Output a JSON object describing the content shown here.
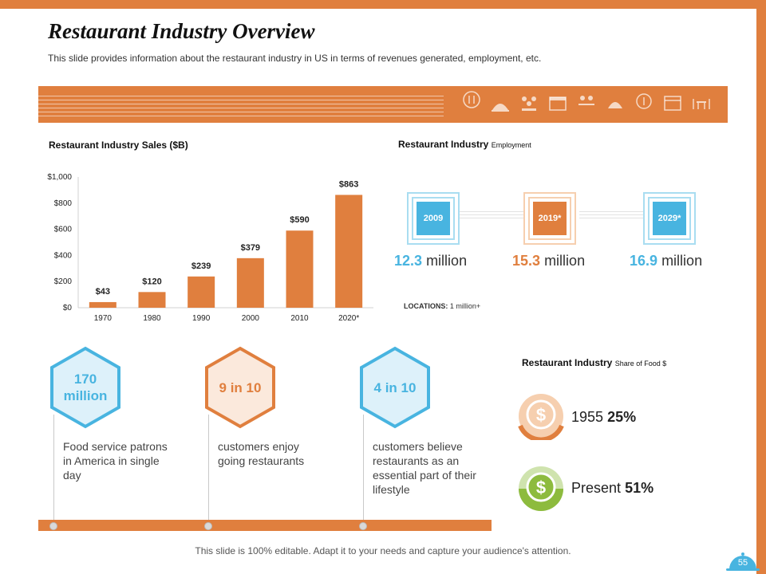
{
  "header": {
    "title": "Restaurant Industry Overview",
    "subtitle": "This slide provides information about the restaurant industry in US in terms of revenues generated, employment, etc."
  },
  "sales": {
    "title": "Restaurant Industry Sales ($B)"
  },
  "chart_data": {
    "type": "bar",
    "title": "Restaurant Industry Sales ($B)",
    "categories": [
      "1970",
      "1980",
      "1990",
      "2000",
      "2010",
      "2020*"
    ],
    "values": [
      43,
      120,
      239,
      379,
      590,
      863
    ],
    "value_labels": [
      "$43",
      "$120",
      "$239",
      "$379",
      "$590",
      "$863"
    ],
    "ylim": [
      0,
      1000
    ],
    "yticks": [
      0,
      200,
      400,
      600,
      800,
      1000
    ],
    "ytick_labels": [
      "$0",
      "$200",
      "$400",
      "$600",
      "$800",
      "$1,000"
    ],
    "xlabel": "",
    "ylabel": "",
    "color": "#E07F3E"
  },
  "employment": {
    "title_bold": "Restaurant Industry",
    "title_small": "Employment",
    "items": [
      {
        "year": "2009",
        "value": "12.3",
        "unit": "million",
        "color": "#48B4E0"
      },
      {
        "year": "2019*",
        "value": "15.3",
        "unit": "million",
        "color": "#E07F3E"
      },
      {
        "year": "2029*",
        "value": "16.9",
        "unit": "million",
        "color": "#48B4E0"
      }
    ],
    "locations_label": "LOCATIONS:",
    "locations_value": "1 million+"
  },
  "stats": [
    {
      "value": "170 million",
      "desc": "Food service patrons in America in single day",
      "color": "#48B4E0"
    },
    {
      "value": "9 in 10",
      "desc": "customers enjoy going restaurants",
      "color": "#E07F3E"
    },
    {
      "value": "4 in 10",
      "desc": "customers believe restaurants as an essential part of their lifestyle",
      "color": "#48B4E0"
    }
  ],
  "share": {
    "title_bold": "Restaurant Industry",
    "title_small": "Share of Food $",
    "items": [
      {
        "label": "1955",
        "value": "25%",
        "color": "#E07F3E"
      },
      {
        "label": "Present",
        "value": "51%",
        "color": "#8DBB3E"
      }
    ]
  },
  "footer": {
    "text": "This slide is 100% editable. Adapt it to your needs and capture your audience's attention.",
    "page_number": "55"
  },
  "colors": {
    "orange": "#E07F3E",
    "blue": "#48B4E0",
    "green": "#8DBB3E"
  }
}
